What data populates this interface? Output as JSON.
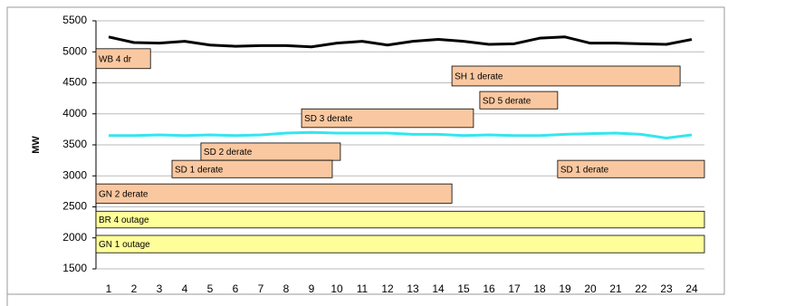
{
  "chart_data": {
    "type": "line",
    "y_label": "MW",
    "categories": [
      "1",
      "2",
      "3",
      "4",
      "5",
      "6",
      "7",
      "8",
      "9",
      "10",
      "11",
      "12",
      "13",
      "14",
      "15",
      "16",
      "17",
      "18",
      "19",
      "20",
      "21",
      "22",
      "23",
      "24"
    ],
    "ylim": [
      1500,
      5500
    ],
    "yticks": [
      1500,
      2000,
      2500,
      3000,
      3500,
      4000,
      4500,
      5000,
      5500
    ],
    "grid": true,
    "series": [
      {
        "color": "#000000",
        "values": [
          5240,
          5150,
          5140,
          5170,
          5110,
          5090,
          5100,
          5100,
          5080,
          5140,
          5170,
          5110,
          5170,
          5200,
          5170,
          5120,
          5130,
          5220,
          5240,
          5140,
          5140,
          5130,
          5120,
          5200
        ]
      },
      {
        "color": "#33e6f0",
        "values": [
          3650,
          3650,
          3660,
          3650,
          3660,
          3650,
          3660,
          3690,
          3700,
          3690,
          3690,
          3690,
          3670,
          3670,
          3650,
          3660,
          3650,
          3650,
          3670,
          3680,
          3690,
          3670,
          3610,
          3660
        ]
      }
    ],
    "annotations": [
      {
        "text": "WB 4 dr",
        "start": 0.5,
        "end": 2.65,
        "top": 5050,
        "bottom": 4730,
        "color": "#fac8a0"
      },
      {
        "text": "SH 1 derate",
        "start": 14.54,
        "end": 23.54,
        "top": 4770,
        "bottom": 4450,
        "color": "#fac8a0"
      },
      {
        "text": "SD 5 derate",
        "start": 15.64,
        "end": 18.71,
        "top": 4360,
        "bottom": 4080,
        "color": "#fac8a0"
      },
      {
        "text": "SD 3 derate",
        "start": 8.61,
        "end": 15.39,
        "top": 4080,
        "bottom": 3780,
        "color": "#fac8a0"
      },
      {
        "text": "SD 2 derate",
        "start": 4.64,
        "end": 10.14,
        "top": 3530,
        "bottom": 3250,
        "color": "#fac8a0"
      },
      {
        "text": "SD 1 derate",
        "start": 3.5,
        "end": 9.82,
        "top": 3250,
        "bottom": 2970,
        "color": "#fac8a0"
      },
      {
        "text": "SD 1 derate",
        "start": 18.71,
        "end": 24.5,
        "top": 3250,
        "bottom": 2970,
        "color": "#fac8a0"
      },
      {
        "text": "GN 2  derate",
        "start": 0.5,
        "end": 14.54,
        "top": 2870,
        "bottom": 2560,
        "color": "#fac8a0"
      },
      {
        "text": "BR 4 outage",
        "start": 0.5,
        "end": 24.5,
        "top": 2430,
        "bottom": 2160,
        "color": "#ffff99"
      },
      {
        "text": "GN 1  outage",
        "start": 0.5,
        "end": 24.5,
        "top": 2040,
        "bottom": 1760,
        "color": "#ffff99"
      }
    ]
  }
}
